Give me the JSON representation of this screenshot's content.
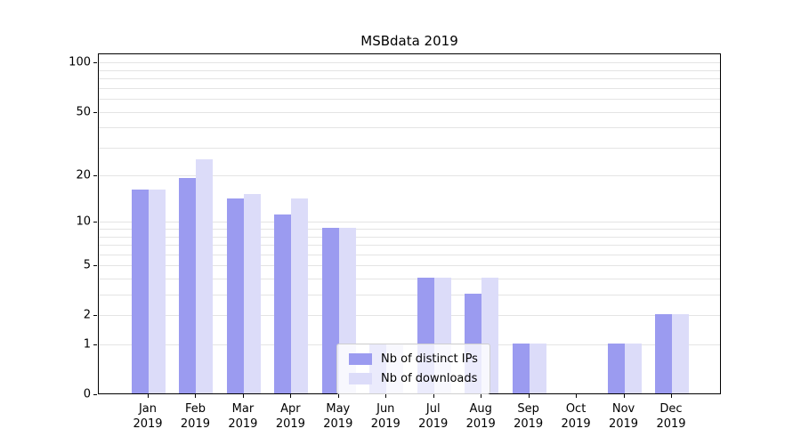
{
  "chart_data": {
    "type": "bar",
    "title": "MSBdata 2019",
    "categories": [
      "Jan",
      "Feb",
      "Mar",
      "Apr",
      "May",
      "Jun",
      "Jul",
      "Aug",
      "Sep",
      "Oct",
      "Nov",
      "Dec"
    ],
    "x_year": "2019",
    "series": [
      {
        "key": "distinct-ips",
        "name": "Nb of distinct IPs",
        "color": "#9b9bf0",
        "values": [
          16,
          19,
          14,
          11,
          9,
          1,
          4,
          3,
          1,
          0,
          1,
          2
        ]
      },
      {
        "key": "downloads",
        "name": "Nb of downloads",
        "color": "#dcdcf9",
        "values": [
          16,
          25,
          15,
          14,
          9,
          1,
          4,
          4,
          1,
          0,
          1,
          2
        ]
      }
    ],
    "yscale": "log1p",
    "ylim": [
      0,
      114
    ],
    "yticks": [
      0,
      1,
      2,
      5,
      10,
      20,
      50,
      100
    ],
    "gridlines": [
      1,
      2,
      3,
      4,
      5,
      6,
      7,
      8,
      9,
      10,
      20,
      30,
      40,
      50,
      60,
      70,
      80,
      90,
      100
    ],
    "grid": true,
    "legend_position": "lower-center"
  }
}
